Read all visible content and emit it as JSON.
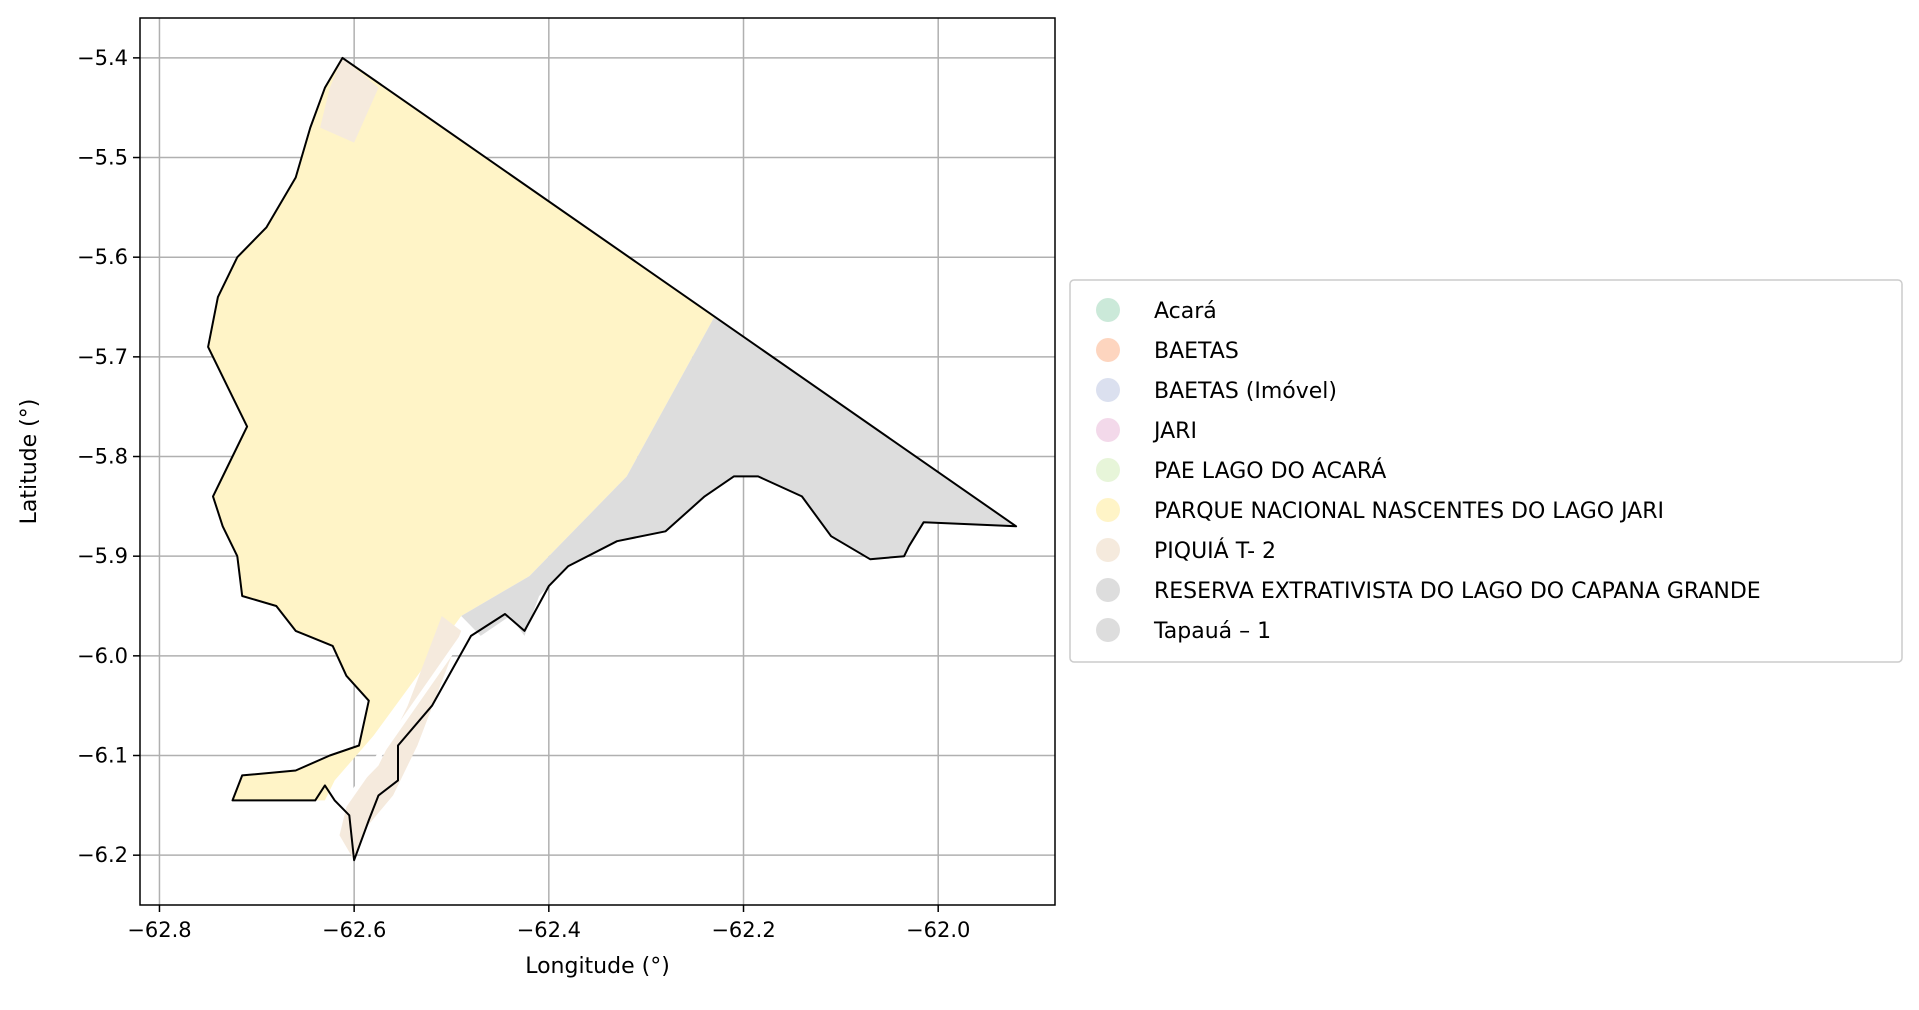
{
  "map": {
    "xlabel": "Longitude (°)",
    "ylabel": "Latitude (°)",
    "xlim": [
      -62.82,
      -61.88
    ],
    "ylim": [
      -6.25,
      -5.36
    ],
    "grid": true,
    "x_ticks": [
      {
        "value": -62.8,
        "label": "−62.8"
      },
      {
        "value": -62.6,
        "label": "−62.6"
      },
      {
        "value": -62.4,
        "label": "−62.4"
      },
      {
        "value": -62.2,
        "label": "−62.2"
      },
      {
        "value": -62.0,
        "label": "−62.0"
      }
    ],
    "y_ticks": [
      {
        "value": -5.4,
        "label": "−5.4"
      },
      {
        "value": -5.5,
        "label": "−5.5"
      },
      {
        "value": -5.6,
        "label": "−5.6"
      },
      {
        "value": -5.7,
        "label": "−5.7"
      },
      {
        "value": -5.8,
        "label": "−5.8"
      },
      {
        "value": -5.9,
        "label": "−5.9"
      },
      {
        "value": -6.0,
        "label": "−6.0"
      },
      {
        "value": -6.1,
        "label": "−6.1"
      },
      {
        "value": -6.2,
        "label": "−6.2"
      }
    ],
    "legend_placement": "center-right outside",
    "legend": [
      {
        "label": "Acará",
        "color": "#cbe9d9"
      },
      {
        "label": "BAETAS",
        "color": "#fdd5bf"
      },
      {
        "label": "BAETAS (Imóvel)",
        "color": "#dbe0ef"
      },
      {
        "label": "JARI",
        "color": "#f3d9ea"
      },
      {
        "label": "PAE LAGO DO ACARÁ",
        "color": "#e7f5d9"
      },
      {
        "label": "PARQUE NACIONAL NASCENTES DO LAGO JARI",
        "color": "#fff4c7"
      },
      {
        "label": "PIQUIÁ T- 2",
        "color": "#f5eadd"
      },
      {
        "label": "RESERVA EXTRATIVISTA DO LAGO DO CAPANA GRANDE",
        "color": "#dddddd"
      },
      {
        "label": "Tapauá – 1",
        "color": "#dddddd"
      }
    ],
    "boundary_color": "#000000",
    "areas": [
      {
        "name": "PARQUE NACIONAL NASCENTES DO LAGO JARI",
        "color": "#fff4c7",
        "coords": [
          [
            -62.612,
            -5.4
          ],
          [
            -62.23,
            -5.66
          ],
          [
            -62.32,
            -5.82
          ],
          [
            -62.42,
            -5.92
          ],
          [
            -62.49,
            -5.96
          ],
          [
            -62.58,
            -6.08
          ],
          [
            -62.62,
            -6.125
          ],
          [
            -62.63,
            -6.145
          ],
          [
            -62.725,
            -6.145
          ],
          [
            -62.715,
            -6.12
          ],
          [
            -62.66,
            -6.115
          ],
          [
            -62.625,
            -6.1
          ],
          [
            -62.595,
            -6.09
          ],
          [
            -62.585,
            -6.045
          ],
          [
            -62.608,
            -6.02
          ],
          [
            -62.622,
            -5.99
          ],
          [
            -62.66,
            -5.975
          ],
          [
            -62.68,
            -5.95
          ],
          [
            -62.715,
            -5.94
          ],
          [
            -62.72,
            -5.9
          ],
          [
            -62.735,
            -5.87
          ],
          [
            -62.745,
            -5.84
          ],
          [
            -62.73,
            -5.81
          ],
          [
            -62.71,
            -5.77
          ],
          [
            -62.73,
            -5.73
          ],
          [
            -62.75,
            -5.69
          ],
          [
            -62.74,
            -5.64
          ],
          [
            -62.72,
            -5.6
          ],
          [
            -62.69,
            -5.57
          ],
          [
            -62.66,
            -5.52
          ],
          [
            -62.645,
            -5.47
          ],
          [
            -62.63,
            -5.43
          ],
          [
            -62.612,
            -5.4
          ]
        ]
      },
      {
        "name": "PIQUIÁ T- 2",
        "color": "#f5eadd",
        "coords": [
          [
            -62.612,
            -5.4
          ],
          [
            -62.575,
            -5.43
          ],
          [
            -62.6,
            -5.485
          ],
          [
            -62.635,
            -5.47
          ],
          [
            -62.625,
            -5.43
          ],
          [
            -62.612,
            -5.4
          ]
        ]
      },
      {
        "name": "PIQUIÁ T- 2",
        "color": "#f5eadd",
        "coords": [
          [
            -62.51,
            -5.96
          ],
          [
            -62.49,
            -5.975
          ],
          [
            -62.535,
            -6.09
          ],
          [
            -62.56,
            -6.14
          ],
          [
            -62.59,
            -6.175
          ],
          [
            -62.6,
            -6.205
          ],
          [
            -62.615,
            -6.18
          ],
          [
            -62.605,
            -6.14
          ],
          [
            -62.575,
            -6.11
          ],
          [
            -62.545,
            -6.05
          ],
          [
            -62.51,
            -5.96
          ]
        ]
      },
      {
        "name": "RESERVA EXTRATIVISTA DO LAGO DO CAPANA GRANDE",
        "color": "#dddddd",
        "coords": [
          [
            -62.23,
            -5.66
          ],
          [
            -61.92,
            -5.87
          ],
          [
            -62.015,
            -5.866
          ],
          [
            -62.035,
            -5.9
          ],
          [
            -62.07,
            -5.903
          ],
          [
            -62.11,
            -5.88
          ],
          [
            -62.14,
            -5.84
          ],
          [
            -62.185,
            -5.82
          ],
          [
            -62.21,
            -5.82
          ],
          [
            -62.24,
            -5.84
          ],
          [
            -62.28,
            -5.875
          ],
          [
            -62.33,
            -5.885
          ],
          [
            -62.38,
            -5.91
          ],
          [
            -62.41,
            -5.94
          ],
          [
            -62.425,
            -5.98
          ],
          [
            -62.44,
            -5.96
          ],
          [
            -62.47,
            -5.98
          ],
          [
            -62.49,
            -5.96
          ],
          [
            -62.42,
            -5.92
          ],
          [
            -62.32,
            -5.82
          ],
          [
            -62.23,
            -5.66
          ]
        ]
      }
    ],
    "boundary": [
      [
        -62.612,
        -5.4
      ],
      [
        -61.92,
        -5.87
      ],
      [
        -62.015,
        -5.866
      ],
      [
        -62.03,
        -5.89
      ],
      [
        -62.035,
        -5.9
      ],
      [
        -62.07,
        -5.903
      ],
      [
        -62.11,
        -5.88
      ],
      [
        -62.14,
        -5.84
      ],
      [
        -62.185,
        -5.82
      ],
      [
        -62.21,
        -5.82
      ],
      [
        -62.24,
        -5.84
      ],
      [
        -62.28,
        -5.875
      ],
      [
        -62.33,
        -5.885
      ],
      [
        -62.38,
        -5.91
      ],
      [
        -62.4,
        -5.93
      ],
      [
        -62.425,
        -5.975
      ],
      [
        -62.445,
        -5.958
      ],
      [
        -62.48,
        -5.98
      ],
      [
        -62.52,
        -6.05
      ],
      [
        -62.555,
        -6.09
      ],
      [
        -62.555,
        -6.125
      ],
      [
        -62.575,
        -6.14
      ],
      [
        -62.585,
        -6.165
      ],
      [
        -62.6,
        -6.205
      ],
      [
        -62.605,
        -6.16
      ],
      [
        -62.62,
        -6.145
      ],
      [
        -62.63,
        -6.13
      ],
      [
        -62.64,
        -6.145
      ],
      [
        -62.725,
        -6.145
      ],
      [
        -62.715,
        -6.12
      ],
      [
        -62.66,
        -6.115
      ],
      [
        -62.625,
        -6.1
      ],
      [
        -62.595,
        -6.09
      ],
      [
        -62.585,
        -6.045
      ],
      [
        -62.608,
        -6.02
      ],
      [
        -62.622,
        -5.99
      ],
      [
        -62.66,
        -5.975
      ],
      [
        -62.68,
        -5.95
      ],
      [
        -62.715,
        -5.94
      ],
      [
        -62.72,
        -5.9
      ],
      [
        -62.735,
        -5.87
      ],
      [
        -62.745,
        -5.84
      ],
      [
        -62.73,
        -5.81
      ],
      [
        -62.71,
        -5.77
      ],
      [
        -62.73,
        -5.73
      ],
      [
        -62.75,
        -5.69
      ],
      [
        -62.74,
        -5.64
      ],
      [
        -62.72,
        -5.6
      ],
      [
        -62.69,
        -5.57
      ],
      [
        -62.66,
        -5.52
      ],
      [
        -62.645,
        -5.47
      ],
      [
        -62.63,
        -5.43
      ],
      [
        -62.612,
        -5.4
      ]
    ]
  }
}
